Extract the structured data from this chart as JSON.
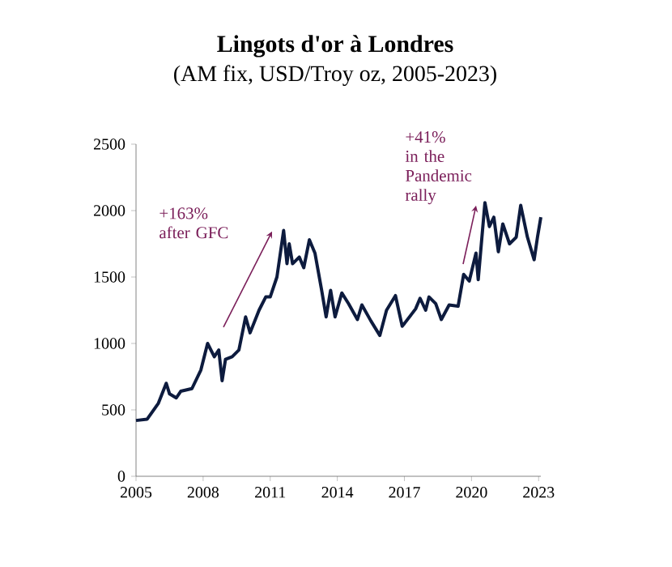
{
  "chart_data": {
    "type": "line",
    "title": "Lingots d'or à Londres",
    "subtitle": "(AM fix, USD/Troy oz, 2005-2023)",
    "x": [
      2005.0,
      2005.5,
      2006.0,
      2006.35,
      2006.5,
      2006.8,
      2007.0,
      2007.5,
      2007.9,
      2008.2,
      2008.5,
      2008.7,
      2008.85,
      2009.0,
      2009.3,
      2009.6,
      2009.9,
      2010.1,
      2010.5,
      2010.8,
      2011.0,
      2011.3,
      2011.6,
      2011.75,
      2011.85,
      2012.0,
      2012.3,
      2012.5,
      2012.75,
      2013.0,
      2013.3,
      2013.5,
      2013.7,
      2013.9,
      2014.2,
      2014.5,
      2014.9,
      2015.1,
      2015.5,
      2015.9,
      2016.2,
      2016.6,
      2016.9,
      2017.0,
      2017.5,
      2017.7,
      2017.95,
      2018.1,
      2018.4,
      2018.65,
      2019.0,
      2019.4,
      2019.65,
      2019.9,
      2020.2,
      2020.3,
      2020.6,
      2020.8,
      2021.0,
      2021.2,
      2021.4,
      2021.7,
      2022.0,
      2022.2,
      2022.5,
      2022.8,
      2022.95,
      2023.1
    ],
    "series": [
      {
        "color": "#0d1b3e",
        "values": [
          420,
          430,
          550,
          700,
          620,
          590,
          640,
          660,
          800,
          1000,
          900,
          950,
          720,
          880,
          900,
          950,
          1200,
          1080,
          1250,
          1350,
          1350,
          1500,
          1850,
          1600,
          1750,
          1600,
          1650,
          1570,
          1780,
          1680,
          1400,
          1200,
          1400,
          1200,
          1380,
          1300,
          1180,
          1290,
          1170,
          1060,
          1250,
          1360,
          1130,
          1150,
          1260,
          1340,
          1250,
          1350,
          1300,
          1180,
          1290,
          1280,
          1520,
          1470,
          1680,
          1480,
          2060,
          1880,
          1950,
          1690,
          1900,
          1750,
          1800,
          2040,
          1800,
          1630,
          1800,
          1950
        ]
      }
    ],
    "xlim": [
      2005,
      2023.1
    ],
    "xticks": [
      2005,
      2008,
      2011,
      2014,
      2017,
      2020,
      2023
    ],
    "ylim": [
      0,
      2500
    ],
    "yticks": [
      0,
      500,
      1000,
      1500,
      2000,
      2500
    ],
    "grid": false,
    "marker": "none",
    "line_style": "solid",
    "annotations": [
      "+163% after GFC",
      "+41% in the Pandemic rally"
    ]
  }
}
